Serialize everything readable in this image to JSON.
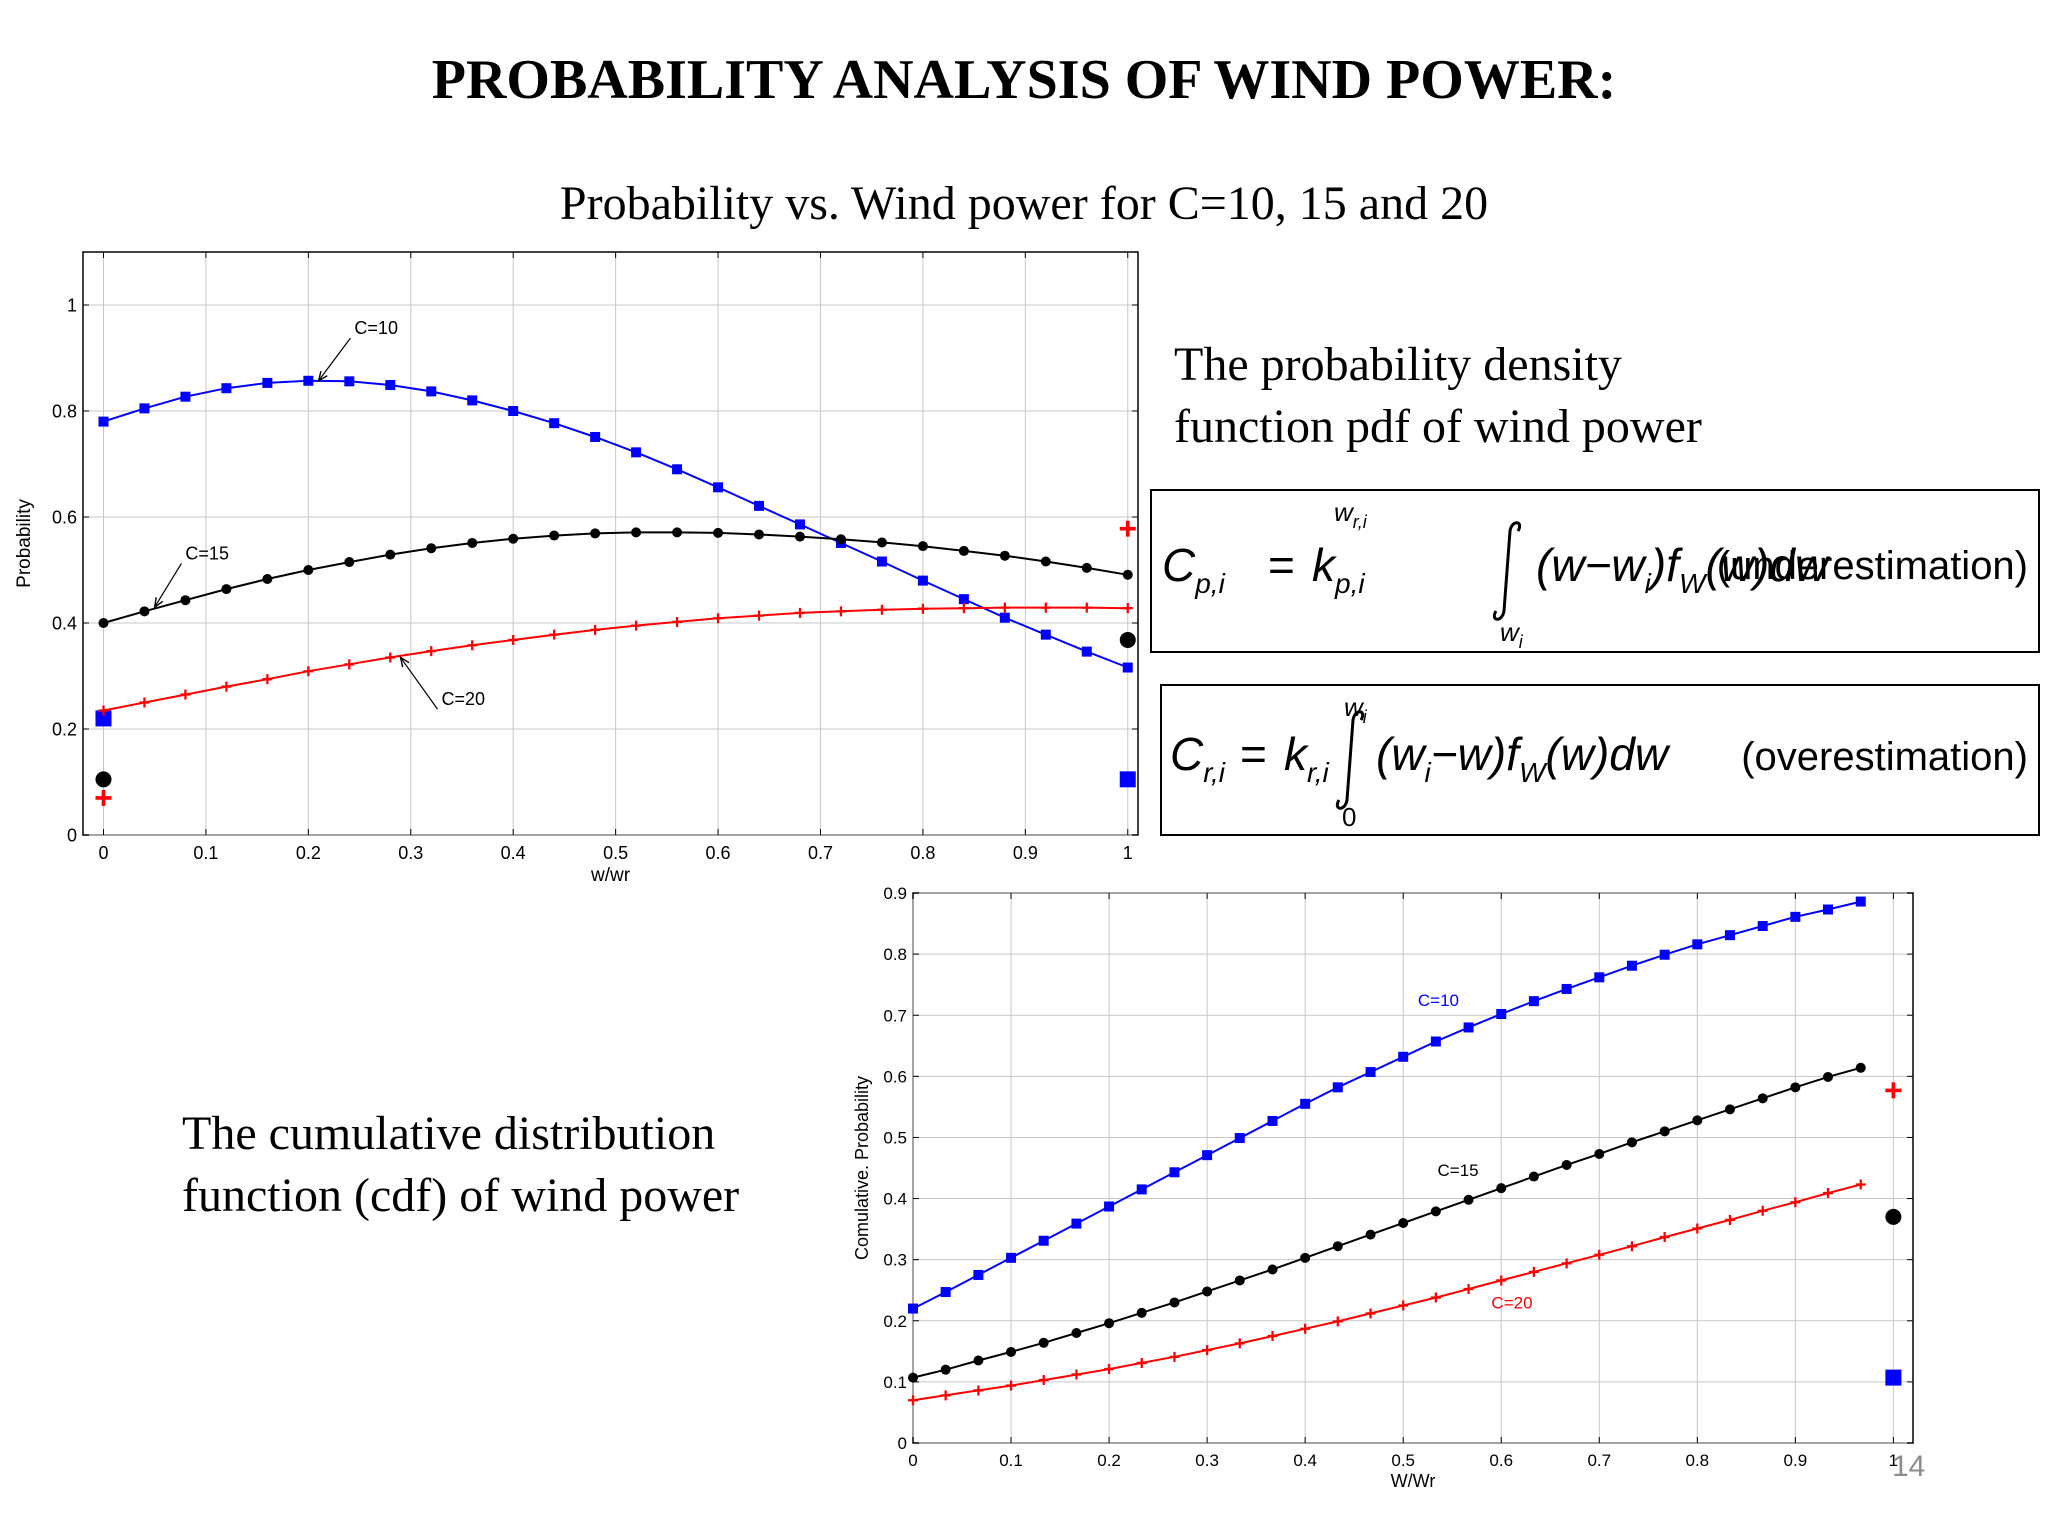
{
  "slide": {
    "title": "PROBABILITY ANALYSIS OF WIND POWER:",
    "chart_title": "Probability vs. Wind power for C=10, 15 and 20",
    "pdf_text": [
      "The probability density",
      "function pdf  of wind power"
    ],
    "cdf_text": [
      "The cumulative distribution",
      "function (cdf) of wind power"
    ],
    "page_number": "14"
  },
  "equations": {
    "underestimation": {
      "lhs_var": "C",
      "lhs_sub": "p,i",
      "eq": "=",
      "coef": "k",
      "coef_sub": "p,i",
      "upper": "w",
      "upper_sub": "r,i",
      "lower": "w",
      "lower_sub": "i",
      "integrand": "(w−w",
      "integrand_sub": "i",
      "integrand2": ")f",
      "f_sub": "W",
      "integrand3": "(w)dw",
      "label": "(underestimation)"
    },
    "overestimation": {
      "lhs_var": "C",
      "lhs_sub": "r,i",
      "eq": "=",
      "coef": "k",
      "coef_sub": "r,i",
      "upper": "w",
      "upper_sub": "i",
      "lower": "0",
      "integrand": "(w",
      "integrand_sub": "i",
      "integrand2": "−w)f",
      "f_sub": "W",
      "integrand3": "(w)dw",
      "label": "(overestimation)"
    }
  },
  "colors": {
    "c10": "#0000ff",
    "c15": "#000000",
    "c20": "#ff0000"
  },
  "chart_data": [
    {
      "type": "line",
      "xlabel": "w/wr",
      "ylabel": "Probability",
      "xlim": [
        -0.02,
        1.01
      ],
      "ylim": [
        0,
        1.1
      ],
      "xticks": [
        0,
        0.1,
        0.2,
        0.3,
        0.4,
        0.5,
        0.6,
        0.7,
        0.8,
        0.9,
        1
      ],
      "yticks": [
        0,
        0.2,
        0.4,
        0.6,
        0.8,
        1
      ],
      "xtick_labels": [
        "0",
        "0.1",
        "0.2",
        "0.3",
        "0.4",
        "0.5",
        "0.6",
        "0.7",
        "0.8",
        "0.9",
        "1"
      ],
      "ytick_labels": [
        "0",
        "0.2",
        "0.4",
        "0.6",
        "0.8",
        "1"
      ],
      "grid": true,
      "x": [
        0,
        0.04,
        0.08,
        0.12,
        0.16,
        0.2,
        0.24,
        0.28,
        0.32,
        0.36,
        0.4,
        0.44,
        0.48,
        0.52,
        0.56,
        0.6,
        0.64,
        0.68,
        0.72,
        0.76,
        0.8,
        0.84,
        0.88,
        0.92,
        0.96,
        1.0
      ],
      "series": [
        {
          "name": "C=10",
          "color": "#0000ff",
          "marker": "square",
          "values": [
            0.78,
            0.805,
            0.827,
            0.843,
            0.853,
            0.857,
            0.856,
            0.849,
            0.837,
            0.82,
            0.8,
            0.777,
            0.751,
            0.722,
            0.69,
            0.656,
            0.621,
            0.586,
            0.551,
            0.516,
            0.48,
            0.445,
            0.41,
            0.378,
            0.346,
            0.316
          ],
          "point_masses": [
            {
              "x": 0,
              "y": 0.22
            },
            {
              "x": 1,
              "y": 0.105
            }
          ]
        },
        {
          "name": "C=15",
          "color": "#000000",
          "marker": "circle",
          "values": [
            0.4,
            0.422,
            0.443,
            0.464,
            0.483,
            0.5,
            0.515,
            0.529,
            0.541,
            0.551,
            0.559,
            0.565,
            0.569,
            0.571,
            0.571,
            0.57,
            0.567,
            0.563,
            0.558,
            0.552,
            0.545,
            0.536,
            0.527,
            0.516,
            0.504,
            0.491
          ],
          "point_masses": [
            {
              "x": 0,
              "y": 0.105
            },
            {
              "x": 1,
              "y": 0.368
            }
          ]
        },
        {
          "name": "C=20",
          "color": "#ff0000",
          "marker": "plus",
          "values": [
            0.235,
            0.25,
            0.265,
            0.28,
            0.294,
            0.309,
            0.322,
            0.335,
            0.347,
            0.358,
            0.368,
            0.378,
            0.387,
            0.395,
            0.402,
            0.409,
            0.414,
            0.419,
            0.422,
            0.425,
            0.427,
            0.428,
            0.429,
            0.429,
            0.429,
            0.428
          ],
          "point_masses": [
            {
              "x": 0,
              "y": 0.07
            },
            {
              "x": 1,
              "y": 0.578
            }
          ]
        }
      ],
      "annotations": [
        {
          "text": "C=10",
          "x": 0.245,
          "y": 0.945,
          "arrow_x": 0.21,
          "arrow_y": 0.857
        },
        {
          "text": "C=15",
          "x": 0.08,
          "y": 0.52,
          "arrow_x": 0.05,
          "arrow_y": 0.43
        },
        {
          "text": "C=20",
          "x": 0.33,
          "y": 0.245,
          "arrow_x": 0.29,
          "arrow_y": 0.335
        }
      ]
    },
    {
      "type": "line",
      "xlabel": "W/Wr",
      "ylabel": "Comulative. Probability",
      "xlim": [
        0,
        1.02
      ],
      "ylim": [
        0,
        0.9
      ],
      "xticks": [
        0,
        0.1,
        0.2,
        0.3,
        0.4,
        0.5,
        0.6,
        0.7,
        0.8,
        0.9,
        1
      ],
      "yticks": [
        0,
        0.1,
        0.2,
        0.3,
        0.4,
        0.5,
        0.6,
        0.7,
        0.8,
        0.9
      ],
      "xtick_labels": [
        "0",
        "0.1",
        "0.2",
        "0.3",
        "0.4",
        "0.5",
        "0.6",
        "0.7",
        "0.8",
        "0.9",
        "1"
      ],
      "ytick_labels": [
        "0",
        "0.1",
        "0.2",
        "0.3",
        "0.4",
        "0.5",
        "0.6",
        "0.7",
        "0.8",
        "0.9"
      ],
      "grid": true,
      "x": [
        0,
        0.0333,
        0.0667,
        0.1,
        0.1333,
        0.1667,
        0.2,
        0.2333,
        0.2667,
        0.3,
        0.3333,
        0.3667,
        0.4,
        0.4333,
        0.4667,
        0.5,
        0.5333,
        0.5667,
        0.6,
        0.6333,
        0.6667,
        0.7,
        0.7333,
        0.7667,
        0.8,
        0.8333,
        0.8667,
        0.9,
        0.9333,
        0.9667
      ],
      "series": [
        {
          "name": "C=10",
          "color": "#0000ff",
          "marker": "square",
          "values": [
            0.22,
            0.247,
            0.275,
            0.303,
            0.331,
            0.359,
            0.387,
            0.415,
            0.443,
            0.471,
            0.499,
            0.527,
            0.555,
            0.582,
            0.607,
            0.632,
            0.657,
            0.68,
            0.702,
            0.723,
            0.743,
            0.762,
            0.781,
            0.799,
            0.816,
            0.831,
            0.846,
            0.861,
            0.873,
            0.886
          ],
          "point_masses": [
            {
              "x": 1,
              "y": 0.107
            }
          ]
        },
        {
          "name": "C=15",
          "color": "#000000",
          "marker": "circle",
          "values": [
            0.107,
            0.12,
            0.135,
            0.149,
            0.164,
            0.18,
            0.196,
            0.213,
            0.23,
            0.248,
            0.266,
            0.284,
            0.303,
            0.322,
            0.341,
            0.36,
            0.379,
            0.398,
            0.417,
            0.436,
            0.455,
            0.473,
            0.492,
            0.51,
            0.528,
            0.546,
            0.564,
            0.582,
            0.599,
            0.614
          ],
          "point_masses": [
            {
              "x": 1,
              "y": 0.37
            }
          ]
        },
        {
          "name": "C=20",
          "color": "#ff0000",
          "marker": "plus",
          "values": [
            0.07,
            0.078,
            0.086,
            0.094,
            0.103,
            0.112,
            0.121,
            0.131,
            0.141,
            0.152,
            0.163,
            0.175,
            0.187,
            0.199,
            0.212,
            0.225,
            0.238,
            0.252,
            0.266,
            0.28,
            0.294,
            0.308,
            0.322,
            0.337,
            0.351,
            0.365,
            0.38,
            0.394,
            0.409,
            0.423
          ],
          "point_masses": [
            {
              "x": 1,
              "y": 0.577
            }
          ]
        }
      ],
      "annotations": [
        {
          "text": "C=10",
          "x": 0.515,
          "y": 0.715
        },
        {
          "text": "C=15",
          "x": 0.535,
          "y": 0.437
        },
        {
          "text": "C=20",
          "x": 0.59,
          "y": 0.22
        }
      ]
    }
  ]
}
